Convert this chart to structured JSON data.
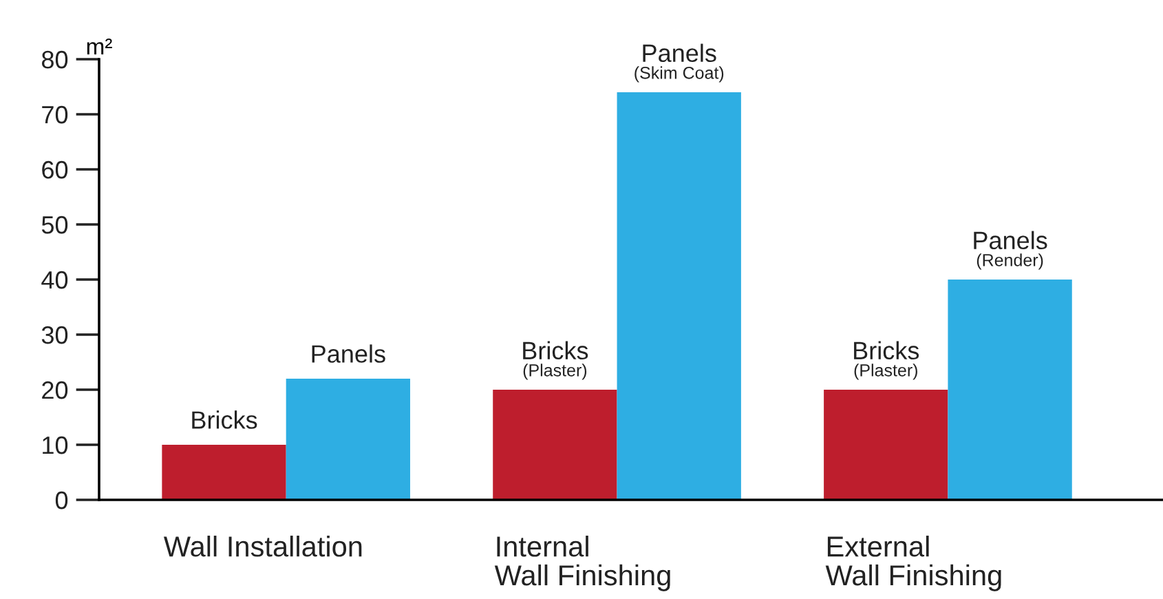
{
  "chart_data": {
    "type": "bar",
    "ylabel": "m²",
    "categories": [
      "Wall Installation",
      "Internal\nWall Finishing",
      "External\nWall Finishing"
    ],
    "series": [
      {
        "name": "Bricks",
        "color": "#be1e2d",
        "values": [
          10,
          20,
          20
        ]
      },
      {
        "name": "Panels",
        "color": "#2eaee3",
        "values": [
          22,
          74,
          40
        ]
      }
    ],
    "ylim": [
      0,
      80
    ],
    "yticks": [
      0,
      10,
      20,
      30,
      40,
      50,
      60,
      70,
      80
    ],
    "grid": false,
    "legend": false,
    "annotations": [
      {
        "text": "(Plaster)",
        "x": "Internal\nWall Finishing",
        "y": 20
      },
      "(Skim Coat)",
      {
        "text": "(Plaster)",
        "x": "External\nWall Finishing",
        "y": 20
      },
      "(Render)"
    ]
  }
}
